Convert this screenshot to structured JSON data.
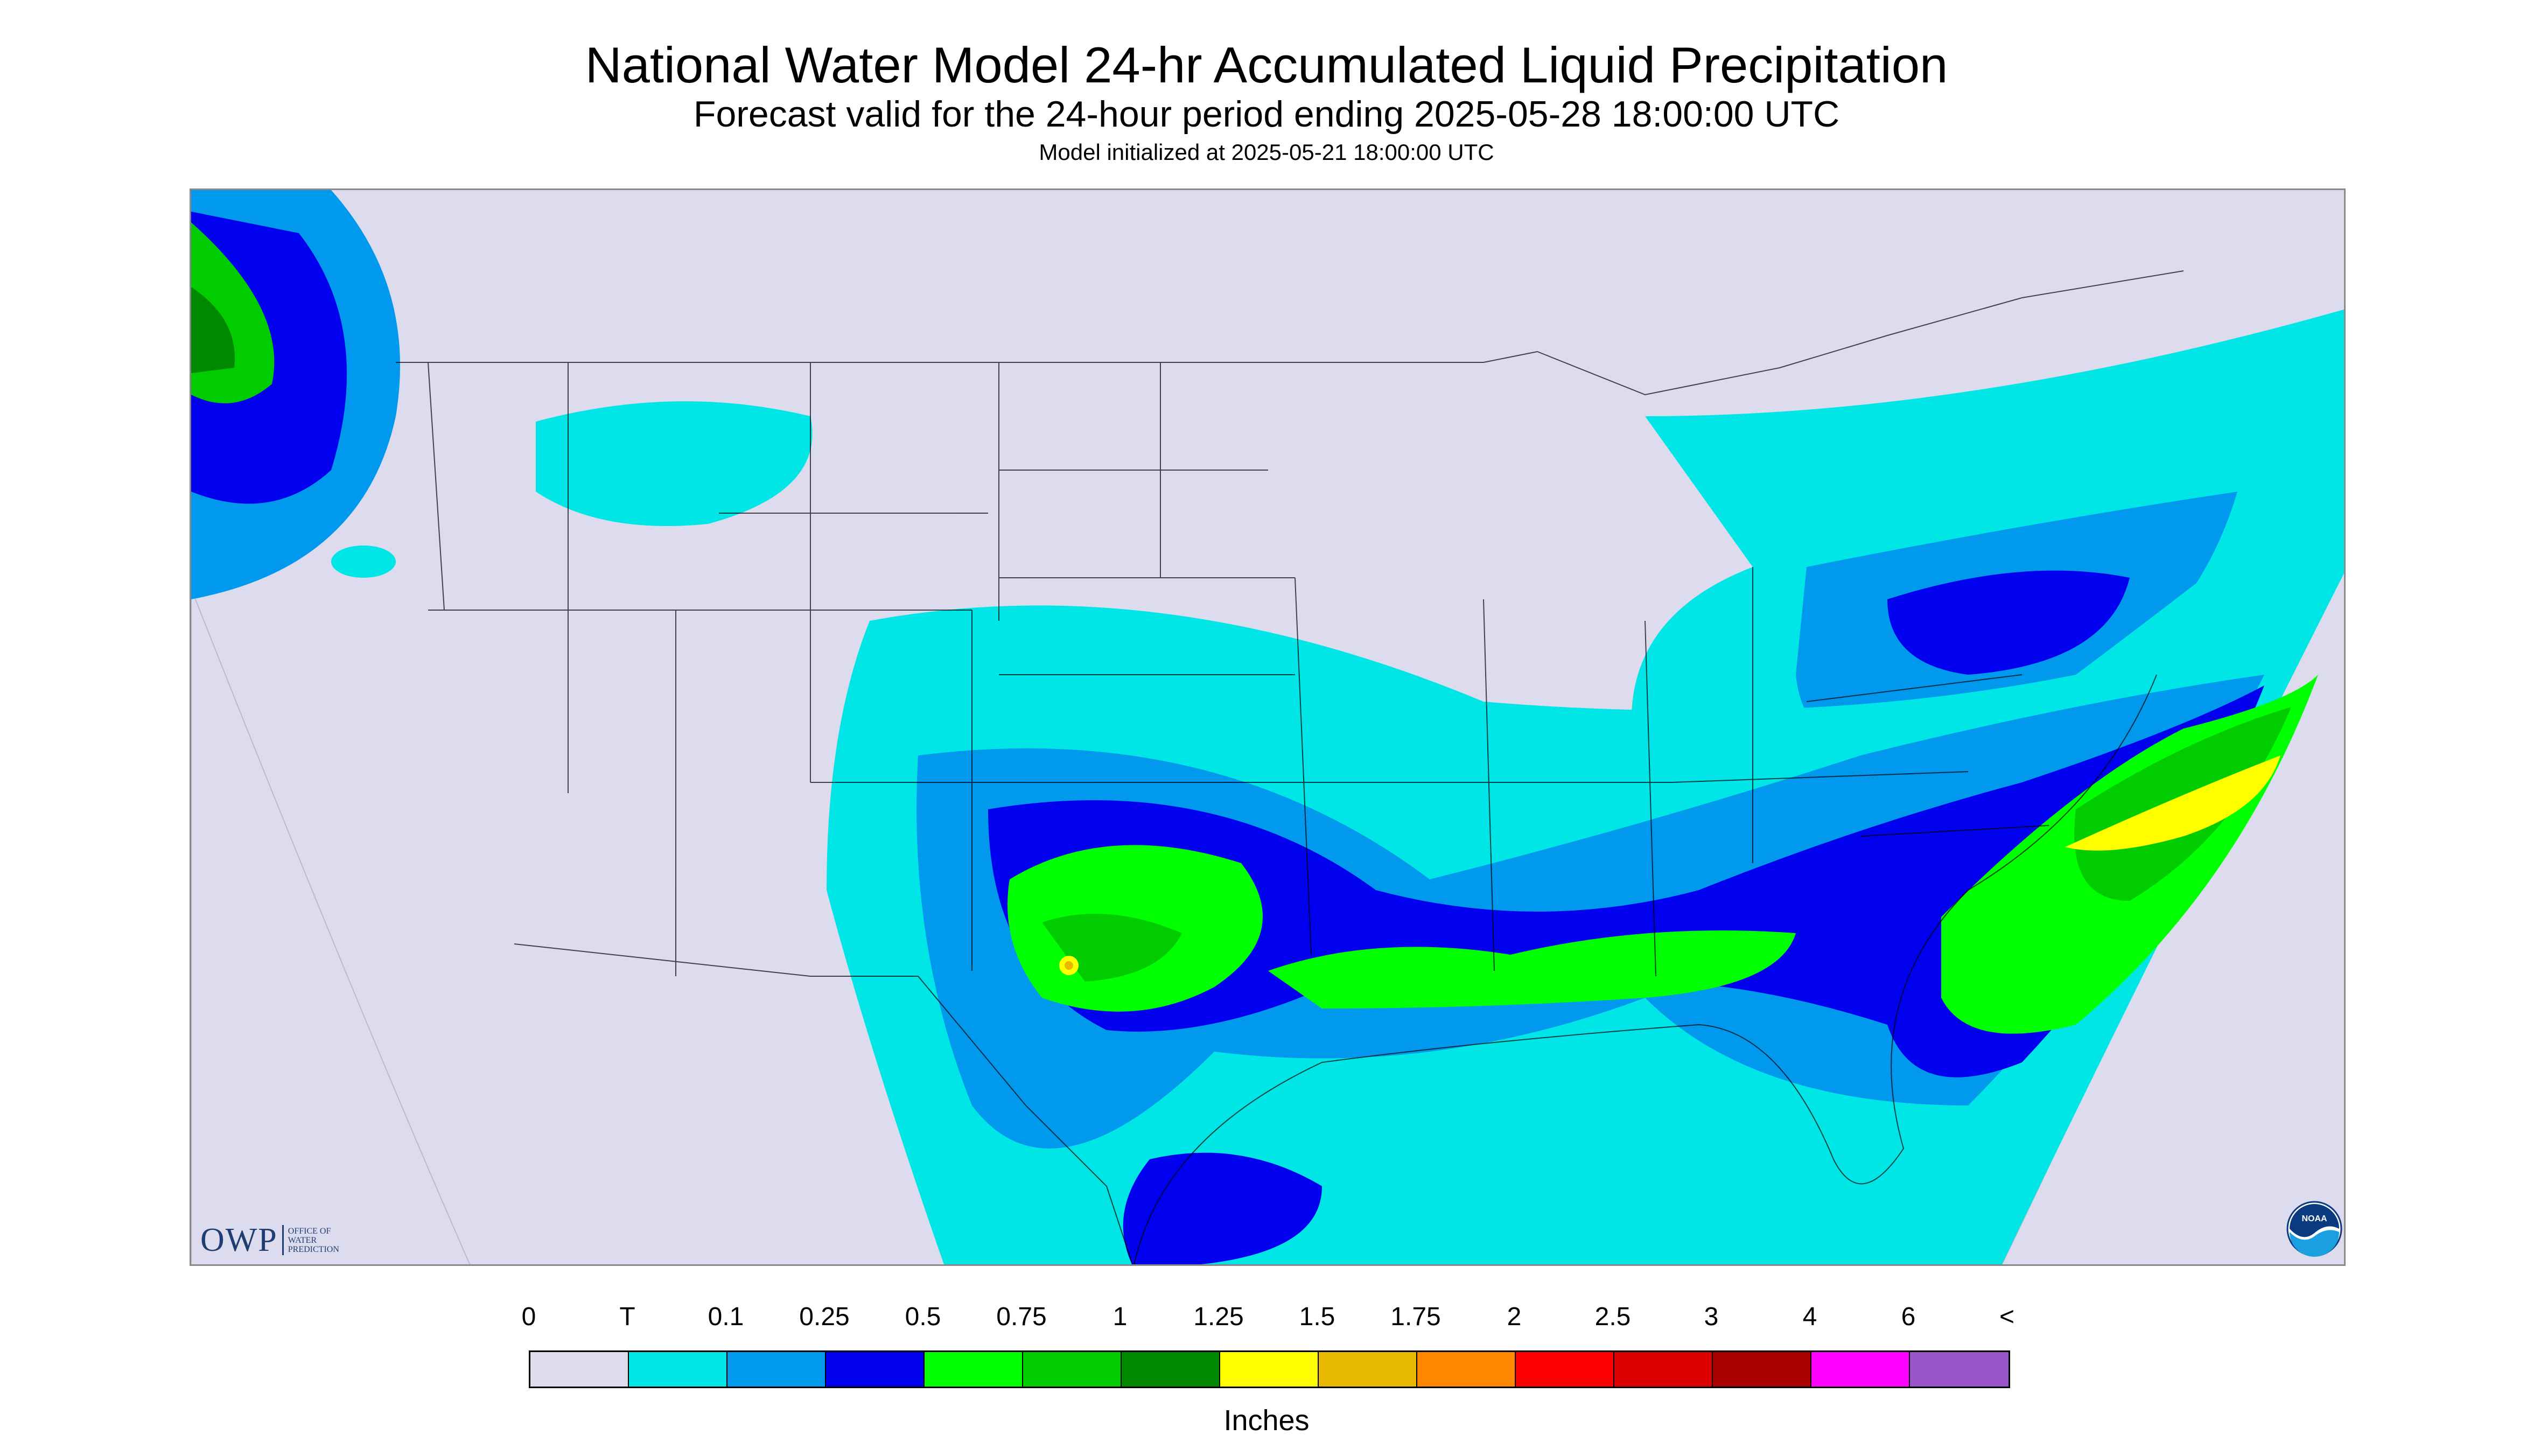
{
  "header": {
    "title": "National Water Model 24-hr Accumulated Liquid Precipitation",
    "subtitle": "Forecast valid for the 24-hour period ending 2025-05-28 18:00:00 UTC",
    "init_line": "Model initialized at 2025-05-21 18:00:00 UTC"
  },
  "map": {
    "region": "CONUS",
    "background_color": "#dddcee",
    "boundary_color": "#000000"
  },
  "logos": {
    "owp": {
      "letters": "OWP",
      "line1": "OFFICE OF",
      "line2": "WATER",
      "line3": "PREDICTION"
    },
    "noaa": {
      "text": "NOAA"
    }
  },
  "legend": {
    "ticks": [
      "0",
      "T",
      "0.1",
      "0.25",
      "0.5",
      "0.75",
      "1",
      "1.25",
      "1.5",
      "1.75",
      "2",
      "2.5",
      "3",
      "4",
      "6",
      "<"
    ],
    "colors": [
      "#dddcee",
      "#00e6e6",
      "#0099ee",
      "#0000ee",
      "#00ff00",
      "#00cc00",
      "#008800",
      "#ffff00",
      "#e6b800",
      "#ff8800",
      "#ff0000",
      "#dd0000",
      "#aa0000",
      "#ff00ff",
      "#9955cc"
    ],
    "units": "Inches"
  }
}
